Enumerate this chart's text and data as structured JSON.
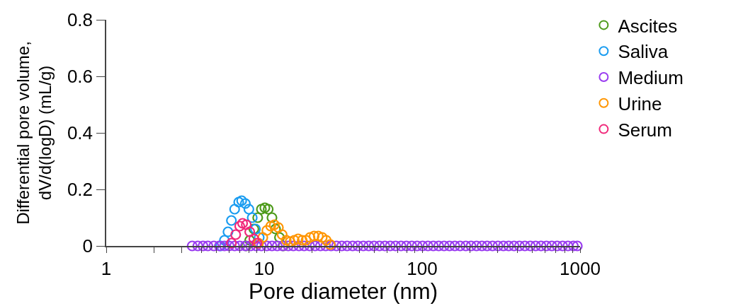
{
  "chart_data": {
    "type": "scatter",
    "xlabel": "Pore diameter (nm)",
    "ylabel": "Differential pore volume,\ndV/d(logD) (mL/g)",
    "log": "x",
    "marker": "circle",
    "legend": "top right",
    "xlim": [
      1,
      1000
    ],
    "ylim": [
      0,
      0.8
    ],
    "yticks": [
      0,
      0.2,
      0.4,
      0.6,
      0.8
    ],
    "xticks": [
      1,
      {
        "value": 2,
        "label": null
      },
      {
        "value": 3,
        "label": null
      },
      {
        "value": 4,
        "label": null
      },
      {
        "value": 5,
        "label": null
      },
      {
        "value": 6,
        "label": null
      },
      {
        "value": 7,
        "label": null
      },
      {
        "value": 8,
        "label": null
      },
      {
        "value": 9,
        "label": null
      },
      10,
      {
        "value": 20,
        "label": null
      },
      {
        "value": 30,
        "label": null
      },
      {
        "value": 40,
        "label": null
      },
      {
        "value": 50,
        "label": null
      },
      {
        "value": 60,
        "label": null
      },
      {
        "value": 70,
        "label": null
      },
      {
        "value": 80,
        "label": null
      },
      {
        "value": 90,
        "label": null
      },
      100,
      {
        "value": 200,
        "label": null
      },
      {
        "value": 300,
        "label": null
      },
      {
        "value": 400,
        "label": null
      },
      {
        "value": 500,
        "label": null
      },
      {
        "value": 600,
        "label": null
      },
      {
        "value": 700,
        "label": null
      },
      {
        "value": 800,
        "label": null
      },
      {
        "value": 900,
        "label": null
      },
      1000
    ],
    "series": [
      {
        "name": "Ascites",
        "color": "#4d9a1a",
        "x": [
          7.7,
          8.1,
          8.6,
          9.1,
          9.6,
          10.1,
          10.6,
          11.2,
          11.8,
          12.5,
          13.2
        ],
        "values": [
          0,
          0.02,
          0.06,
          0.1,
          0.13,
          0.135,
          0.13,
          0.1,
          0.06,
          0.03,
          0
        ]
      },
      {
        "name": "Saliva",
        "color": "#1a9cf0",
        "x": [
          5.3,
          5.6,
          5.9,
          6.2,
          6.5,
          6.9,
          7.2,
          7.6,
          8.0,
          8.4,
          8.8,
          9.3
        ],
        "values": [
          0,
          0.02,
          0.05,
          0.09,
          0.13,
          0.155,
          0.16,
          0.15,
          0.13,
          0.1,
          0.06,
          0.03
        ]
      },
      {
        "name": "Medium",
        "color": "#9a3cf0",
        "x": [
          3.5,
          3.8,
          4.1,
          4.4,
          4.8,
          5.2,
          5.6,
          6.0,
          6.5,
          7.0,
          7.6,
          8.2,
          8.9,
          9.6,
          10.4,
          11.2,
          12.1,
          13.1,
          14.2,
          15.3,
          16.6,
          17.9,
          19.4,
          21,
          22.7,
          24.5,
          26.5,
          28.7,
          31,
          33.5,
          36.3,
          39.2,
          42.4,
          45.9,
          49.6,
          53.7,
          58.1,
          62.8,
          67.9,
          73.5,
          79.5,
          86,
          93,
          100.6,
          108.8,
          117.7,
          127.3,
          137.7,
          149,
          161,
          174,
          189,
          204,
          221,
          239,
          258,
          279,
          302,
          327,
          353,
          382,
          413,
          447,
          484,
          523,
          566,
          612,
          662,
          716,
          775,
          838,
          907,
          960
        ],
        "values": [
          0,
          0,
          0,
          0,
          0,
          0,
          0,
          0,
          0,
          0,
          0,
          0,
          0,
          0,
          0,
          0,
          0,
          0,
          0,
          0,
          0,
          0,
          0,
          0,
          0,
          0,
          0,
          0,
          0,
          0,
          0,
          0,
          0,
          0,
          0,
          0,
          0,
          0,
          0,
          0,
          0,
          0,
          0,
          0,
          0,
          0,
          0,
          0,
          0,
          0,
          0,
          0,
          0,
          0,
          0,
          0,
          0,
          0,
          0,
          0,
          0,
          0,
          0,
          0,
          0,
          0,
          0,
          0,
          0,
          0,
          0,
          0,
          0
        ]
      },
      {
        "name": "Urine",
        "color": "#ff9500",
        "x": [
          9.2,
          9.8,
          10.4,
          11.0,
          11.6,
          12.3,
          13.0,
          13.8,
          14.6,
          15.5,
          16.4,
          17.4,
          18.4,
          19.5,
          20.7,
          22,
          23.3,
          24.7,
          26.2
        ],
        "values": [
          0.01,
          0.03,
          0.055,
          0.07,
          0.075,
          0.065,
          0.04,
          0.02,
          0.015,
          0.02,
          0.025,
          0.02,
          0.02,
          0.03,
          0.035,
          0.035,
          0.03,
          0.02,
          0.005
        ]
      },
      {
        "name": "Serum",
        "color": "#f0287a",
        "x": [
          6.2,
          6.6,
          7.0,
          7.3,
          7.7,
          8.1,
          8.6,
          9.0
        ],
        "values": [
          0.01,
          0.04,
          0.07,
          0.08,
          0.075,
          0.05,
          0.025,
          0.01
        ]
      }
    ]
  }
}
